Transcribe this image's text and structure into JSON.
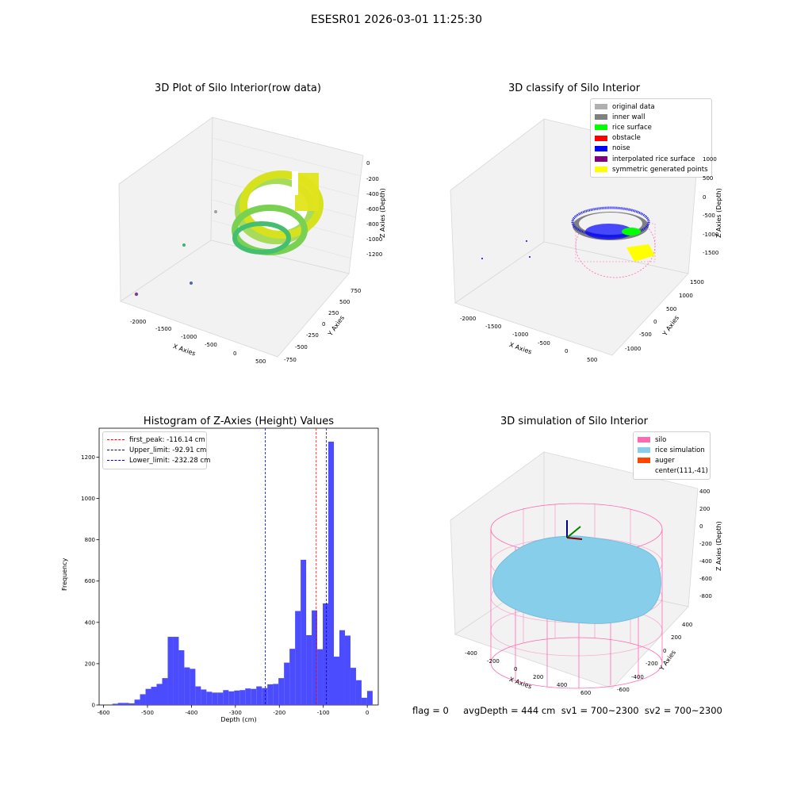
{
  "figure_title": "ESESR01 2026-03-01 11:25:30",
  "footer_text": "flag = 0     avgDepth = 444 cm  sv1 = 700~2300  sv2 = 700~2300",
  "colors": {
    "histogram_bar": "#4c4cff",
    "first_peak": "#ff0000",
    "limits": "#0000cc",
    "silo": "#ff69b4",
    "rice": "#87ceeb",
    "auger": "#ff4500"
  },
  "chart_data": [
    {
      "type": "scatter",
      "subtype": "3d",
      "title": "3D Plot of Silo Interior(row data)",
      "xlabel": "X Axies",
      "ylabel": "Y Axies",
      "zlabel": "Z Axies (Depth)",
      "x_ticks": [
        "-2000",
        "-1500",
        "-1000",
        "-500",
        "0",
        "500"
      ],
      "y_ticks": [
        "-750",
        "-500",
        "-250",
        "0",
        "250",
        "500",
        "750"
      ],
      "z_ticks": [
        "0",
        "-200",
        "-400",
        "-600",
        "-800",
        "-1000",
        "-1200"
      ],
      "colormap": "viridis"
    },
    {
      "type": "scatter",
      "subtype": "3d",
      "title": "3D classify of Silo Interior",
      "xlabel": "X Axies",
      "ylabel": "Y Axies",
      "zlabel": "Z Axies (Depth)",
      "x_ticks": [
        "-2000",
        "-1500",
        "-1000",
        "-500",
        "0",
        "500"
      ],
      "y_ticks": [
        "-1000",
        "-500",
        "0",
        "500",
        "1000",
        "1500"
      ],
      "z_ticks": [
        "1000",
        "500",
        "0",
        "-500",
        "-1000",
        "-1500"
      ],
      "legend": [
        {
          "label": "original data",
          "color": "#b0b0b0"
        },
        {
          "label": "inner wall",
          "color": "#808080"
        },
        {
          "label": "rice surface",
          "color": "#00ff00"
        },
        {
          "label": "obstacle",
          "color": "#ff0000"
        },
        {
          "label": "noise",
          "color": "#0000ff"
        },
        {
          "label": "interpolated rice surface",
          "color": "#800080"
        },
        {
          "label": "symmetric generated points",
          "color": "#ffff00"
        }
      ],
      "legend_position": "top-right"
    },
    {
      "type": "bar",
      "subtype": "histogram",
      "title": "Histogram of Z-Axies (Height) Values",
      "xlabel": "Depth (cm)",
      "ylabel": "Frequency",
      "xlim": [
        -610,
        25
      ],
      "ylim": [
        0,
        1340
      ],
      "x_ticks": [
        -600,
        -500,
        -400,
        -300,
        -200,
        -100,
        0
      ],
      "y_ticks": [
        0,
        200,
        400,
        600,
        800,
        1000,
        1200
      ],
      "bin_width": 12.6,
      "bins": [
        [
          -580,
          6
        ],
        [
          -567.4,
          10
        ],
        [
          -554.8,
          10
        ],
        [
          -542.2,
          8
        ],
        [
          -529.6,
          26
        ],
        [
          -517,
          52
        ],
        [
          -504.4,
          78
        ],
        [
          -491.8,
          88
        ],
        [
          -479.2,
          102
        ],
        [
          -466.6,
          130
        ],
        [
          -454,
          330
        ],
        [
          -441.4,
          330
        ],
        [
          -428.8,
          265
        ],
        [
          -416.2,
          182
        ],
        [
          -403.6,
          175
        ],
        [
          -391,
          90
        ],
        [
          -378.4,
          75
        ],
        [
          -365.8,
          64
        ],
        [
          -353.2,
          60
        ],
        [
          -340.6,
          60
        ],
        [
          -328,
          72
        ],
        [
          -315.4,
          66
        ],
        [
          -302.8,
          70
        ],
        [
          -290.2,
          72
        ],
        [
          -277.6,
          80
        ],
        [
          -265,
          78
        ],
        [
          -252.4,
          90
        ],
        [
          -239.8,
          82
        ],
        [
          -227.2,
          100
        ],
        [
          -214.6,
          102
        ],
        [
          -202,
          130
        ],
        [
          -189.4,
          205
        ],
        [
          -176.8,
          272
        ],
        [
          -164.2,
          455
        ],
        [
          -151.6,
          703
        ],
        [
          -139,
          338
        ],
        [
          -126.4,
          458
        ],
        [
          -113.8,
          270
        ],
        [
          -101.2,
          492
        ],
        [
          -88.6,
          1275
        ],
        [
          -76,
          234
        ],
        [
          -63.4,
          362
        ],
        [
          -50.8,
          336
        ],
        [
          -38.2,
          180
        ],
        [
          -25.6,
          120
        ],
        [
          -13,
          35
        ],
        [
          -0.4,
          68
        ]
      ],
      "vlines": [
        {
          "label": "first_peak: -116.14 cm",
          "x": -116.14,
          "color": "#ff0000"
        },
        {
          "label": "Upper_limit: -92.91 cm",
          "x": -92.91,
          "color": "#0000cc"
        },
        {
          "label": "Lower_limit: -232.28 cm",
          "x": -232.28,
          "color": "#0000cc"
        }
      ],
      "legend_position": "top-left"
    },
    {
      "type": "scatter",
      "subtype": "3d-surface",
      "title": "3D simulation of Silo Interior",
      "xlabel": "X Axies",
      "ylabel": "Y Axies",
      "zlabel": "Z Axies (Depth)",
      "x_ticks": [
        "-400",
        "-200",
        "0",
        "200",
        "400",
        "600"
      ],
      "y_ticks": [
        "-600",
        "-400",
        "-200",
        "0",
        "200",
        "400"
      ],
      "z_ticks": [
        "400",
        "200",
        "0",
        "-200",
        "-400",
        "-600",
        "-800"
      ],
      "legend": [
        {
          "label": "silo",
          "color": "#ff69b4"
        },
        {
          "label": "rice simulation",
          "color": "#87ceeb"
        },
        {
          "label": "auger",
          "color": "#ff4500"
        },
        {
          "label": "center(111,-41)",
          "color": ""
        }
      ],
      "legend_position": "top-right"
    }
  ]
}
